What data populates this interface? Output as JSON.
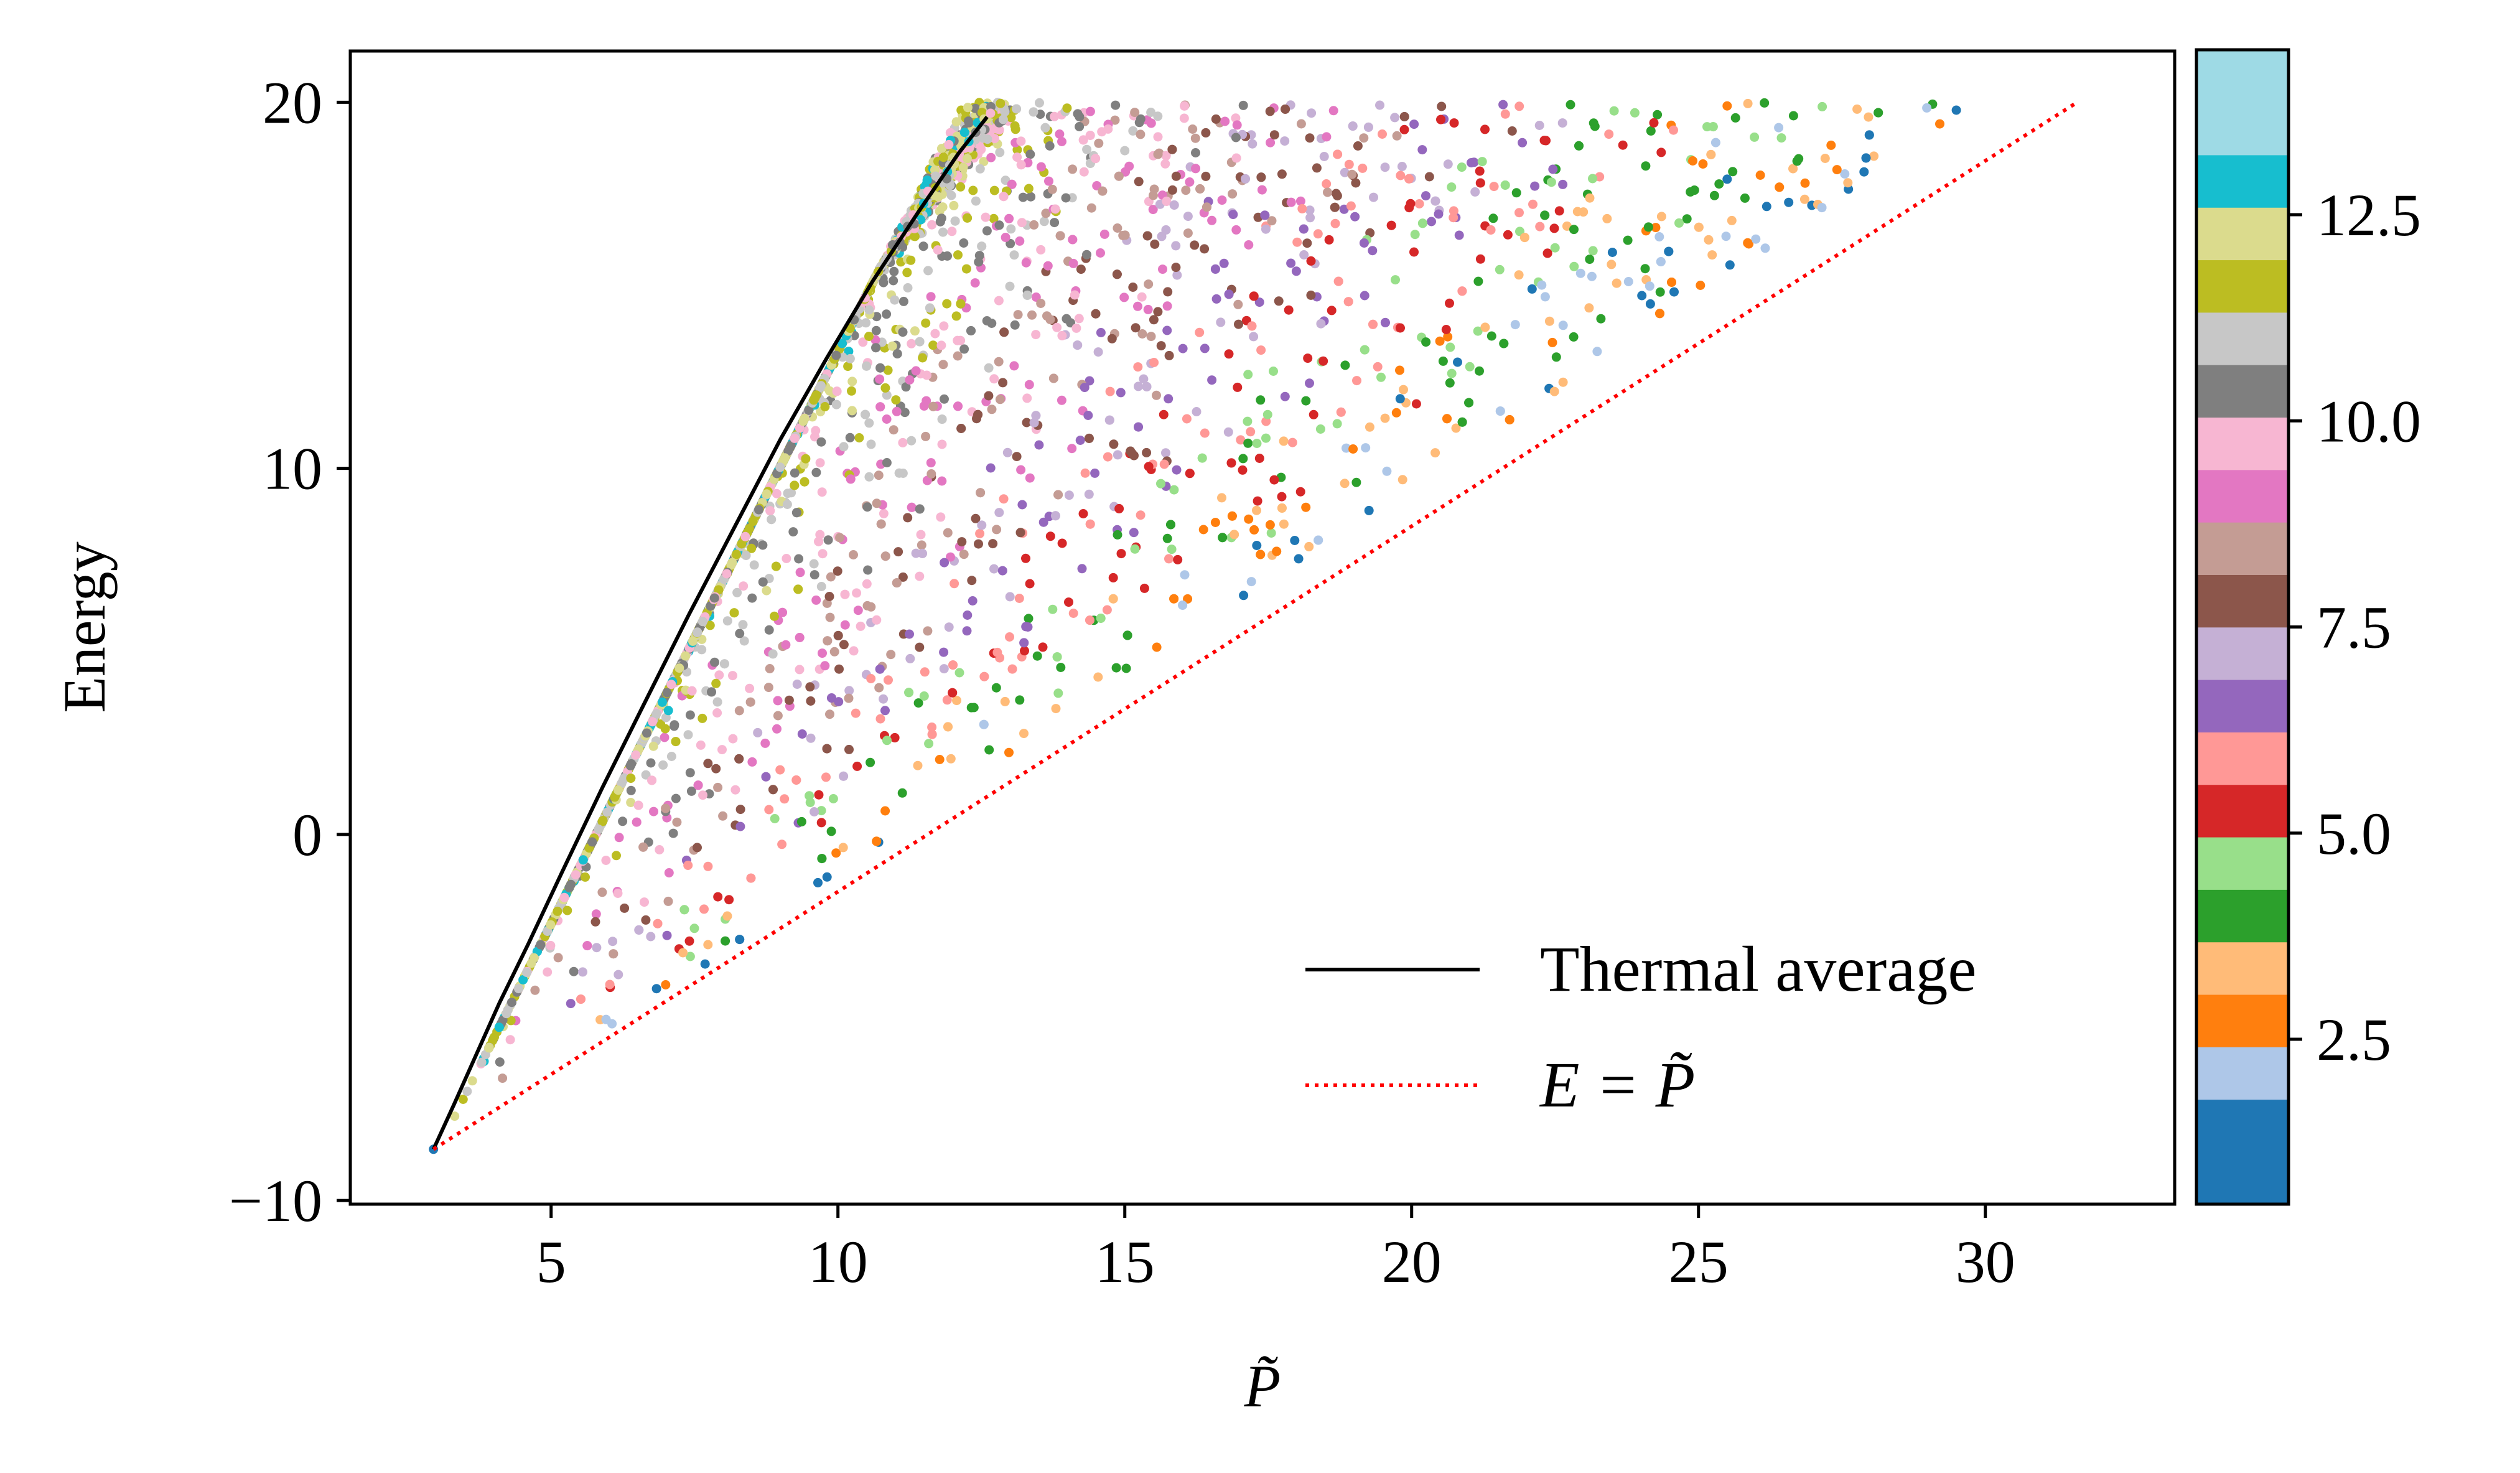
{
  "chart_data": {
    "type": "scatter",
    "xlabel": "P̃",
    "ylabel": "Energy",
    "xlim": [
      1.5,
      33.3
    ],
    "ylim": [
      -10.1,
      21.4
    ],
    "x_ticks": [
      5,
      10,
      15,
      20,
      25,
      30
    ],
    "y_ticks": [
      -10,
      0,
      10,
      20
    ],
    "x_tick_labels": [
      "5",
      "10",
      "15",
      "20",
      "25",
      "30"
    ],
    "y_tick_labels": [
      "−10",
      "0",
      "10",
      "20"
    ],
    "grid": false,
    "legend": {
      "placement": "lower-right",
      "entries": [
        {
          "label": "Thermal average",
          "style": "solid",
          "color": "#000000"
        },
        {
          "label": "E = P̃",
          "style": "dotted",
          "color": "#ff0000"
        }
      ]
    },
    "series": [
      {
        "name": "Thermal average",
        "type": "line",
        "color": "#000000",
        "x": [
          2.95,
          3.3,
          3.7,
          4.1,
          4.6,
          5.2,
          5.9,
          6.6,
          7.4,
          8.2,
          9.0,
          9.8,
          10.6,
          11.4,
          12.1,
          12.6
        ],
        "y": [
          -8.6,
          -7.4,
          -6.0,
          -4.6,
          -3.0,
          -1.0,
          1.3,
          3.5,
          6.0,
          8.4,
          10.8,
          13.0,
          15.1,
          17.0,
          18.6,
          19.6
        ]
      },
      {
        "name": "E = P̃",
        "type": "line",
        "style": "dotted",
        "color": "#ff0000",
        "x": [
          2.95,
          31.6
        ],
        "y": [
          -8.6,
          20.0
        ]
      }
    ],
    "scatter": {
      "x_min": 2.95,
      "e_min": -8.6,
      "e_max": 20.0,
      "point_count": 4200,
      "ground_state": {
        "x": 2.95,
        "y": -8.6
      }
    },
    "colorbar": {
      "colormap": "tab20",
      "range": [
        0.5,
        14.5
      ],
      "ticks": [
        2.5,
        5.0,
        7.5,
        10.0,
        12.5
      ],
      "tick_labels": [
        "2.5",
        "5.0",
        "7.5",
        "10.0",
        "12.5"
      ],
      "colors": [
        "#1f77b4",
        "#aec7e8",
        "#ff7f0e",
        "#ffbb78",
        "#2ca02c",
        "#98df8a",
        "#d62728",
        "#ff9896",
        "#9467bd",
        "#c5b0d5",
        "#8c564b",
        "#c49c94",
        "#e377c2",
        "#f7b6d2",
        "#7f7f7f",
        "#c7c7c7",
        "#bcbd22",
        "#dbdb8d",
        "#17becf",
        "#9edae5"
      ],
      "bins": 22
    }
  }
}
